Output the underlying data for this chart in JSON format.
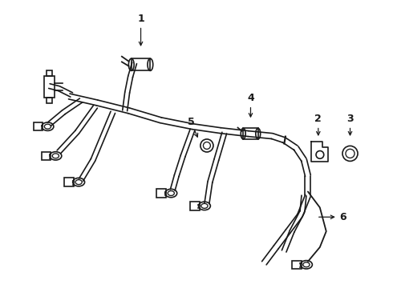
{
  "background_color": "#ffffff",
  "line_color": "#1a1a1a",
  "line_width": 1.2,
  "figsize": [
    4.9,
    3.6
  ],
  "dpi": 100,
  "harness_sep": 0.008,
  "sensor_scale": 1.0
}
